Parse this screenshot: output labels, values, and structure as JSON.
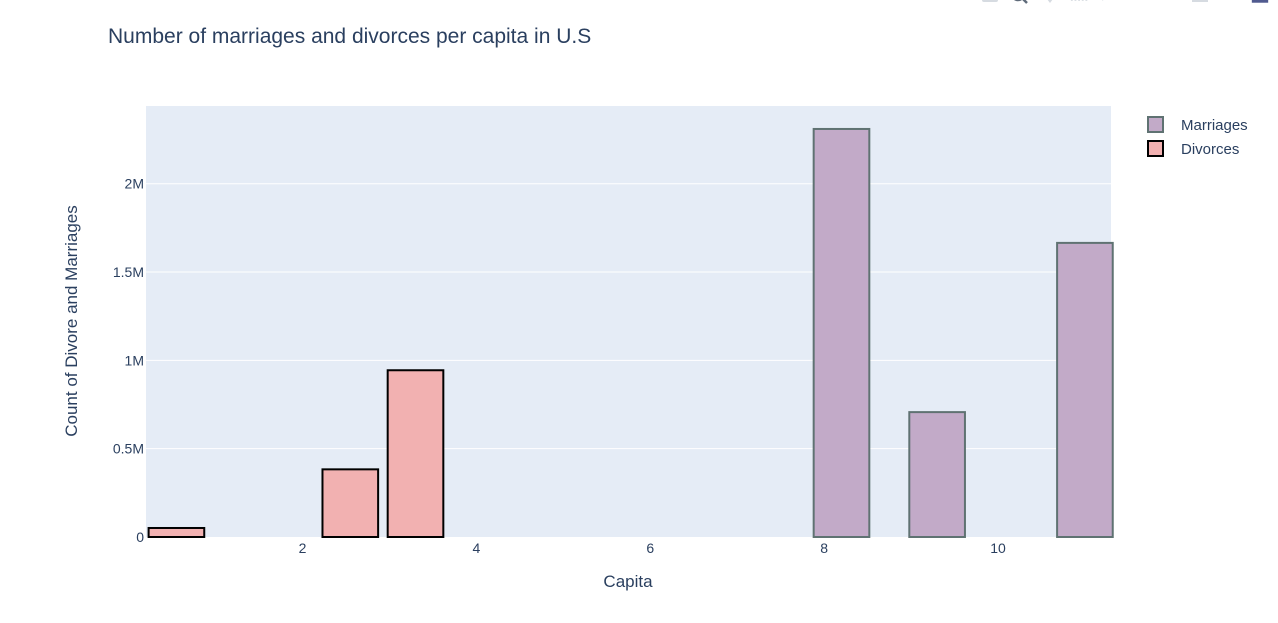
{
  "chart_data": {
    "type": "bar",
    "title": "Number of marriages and divorces per capita in U.S",
    "xlabel": "Capita",
    "ylabel": "Count of Divore and Marriages",
    "xlim": [
      0.2,
      11.3
    ],
    "ylim": [
      0,
      2440000
    ],
    "x_ticks": [
      2,
      4,
      6,
      8,
      10
    ],
    "x_tick_labels": [
      "2",
      "4",
      "6",
      "8",
      "10"
    ],
    "y_ticks": [
      0,
      500000,
      1000000,
      1500000,
      2000000
    ],
    "y_tick_labels": [
      "0",
      "0.5M",
      "1M",
      "1.5M",
      "2M"
    ],
    "bar_width": 0.64,
    "grid": true,
    "legend_position": "top-right",
    "series": [
      {
        "name": "Marriages",
        "color": "#c2aac8",
        "edge_color": "#5f7272",
        "x": [
          8.2,
          9.3,
          11.0
        ],
        "values": [
          2310000,
          707000,
          1665000
        ]
      },
      {
        "name": "Divorces",
        "color": "#f2b1b1",
        "edge_color": "#000000",
        "x": [
          0.55,
          2.55,
          3.3
        ],
        "values": [
          51000,
          383000,
          944000
        ]
      }
    ]
  },
  "modebar": {
    "icons": [
      "camera-icon",
      "zoom-icon",
      "pan-icon",
      "box-select-icon",
      "lasso-icon",
      "zoom-in-icon",
      "zoom-out-icon",
      "autoscale-icon",
      "reset-axes-icon",
      "plotly-logo-icon"
    ]
  }
}
